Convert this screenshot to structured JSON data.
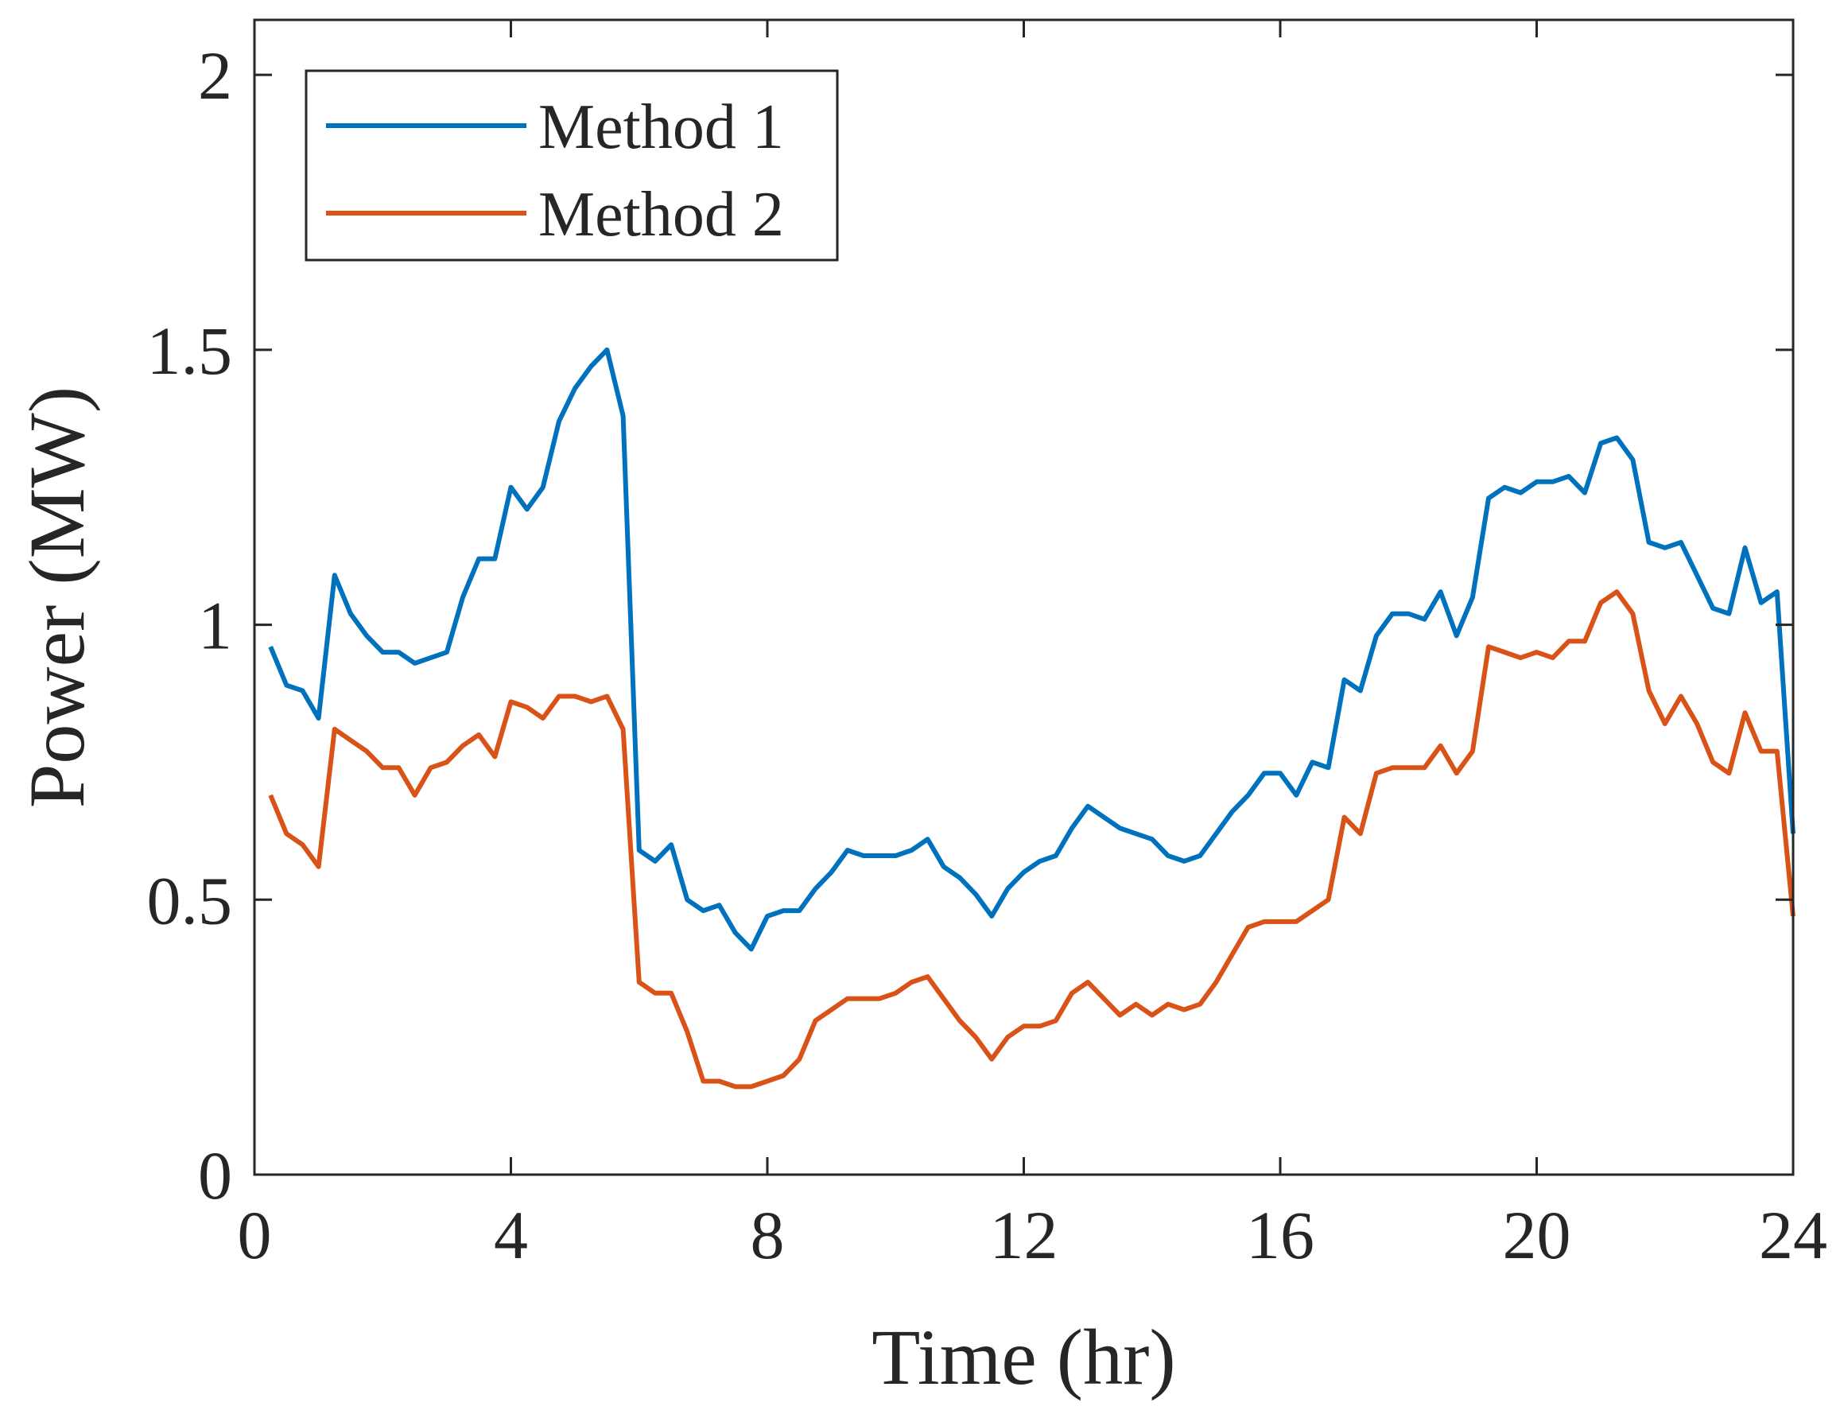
{
  "chart_data": {
    "type": "line",
    "title": "",
    "xlabel": "Time (hr)",
    "ylabel": "Power (MW)",
    "xlim": [
      0,
      24
    ],
    "ylim": [
      0,
      2.1
    ],
    "xticks": [
      0,
      4,
      8,
      12,
      16,
      20,
      24
    ],
    "xtick_labels": [
      "0",
      "4",
      "8",
      "12",
      "16",
      "20",
      "24"
    ],
    "yticks": [
      0,
      0.5,
      1,
      1.5,
      2
    ],
    "ytick_labels": [
      "0",
      "0.5",
      "1",
      "1.5",
      "2"
    ],
    "grid": false,
    "legend_position": "top-left",
    "x": [
      0.25,
      0.5,
      0.75,
      1.0,
      1.25,
      1.5,
      1.75,
      2.0,
      2.25,
      2.5,
      2.75,
      3.0,
      3.25,
      3.5,
      3.75,
      4.0,
      4.25,
      4.5,
      4.75,
      5.0,
      5.25,
      5.5,
      5.75,
      6.0,
      6.25,
      6.5,
      6.75,
      7.0,
      7.25,
      7.5,
      7.75,
      8.0,
      8.25,
      8.5,
      8.75,
      9.0,
      9.25,
      9.5,
      9.75,
      10.0,
      10.25,
      10.5,
      10.75,
      11.0,
      11.25,
      11.5,
      11.75,
      12.0,
      12.25,
      12.5,
      12.75,
      13.0,
      13.25,
      13.5,
      13.75,
      14.0,
      14.25,
      14.5,
      14.75,
      15.0,
      15.25,
      15.5,
      15.75,
      16.0,
      16.25,
      16.5,
      16.75,
      17.0,
      17.25,
      17.5,
      17.75,
      18.0,
      18.25,
      18.5,
      18.75,
      19.0,
      19.25,
      19.5,
      19.75,
      20.0,
      20.25,
      20.5,
      20.75,
      21.0,
      21.25,
      21.5,
      21.75,
      22.0,
      22.25,
      22.5,
      22.75,
      23.0,
      23.25,
      23.5,
      23.75,
      24.0
    ],
    "series": [
      {
        "name": "Method 1",
        "color": "#0072bd",
        "values": [
          0.96,
          0.89,
          0.88,
          0.83,
          1.09,
          1.02,
          0.98,
          0.95,
          0.95,
          0.93,
          0.94,
          0.95,
          1.05,
          1.12,
          1.12,
          1.25,
          1.21,
          1.25,
          1.37,
          1.43,
          1.47,
          1.5,
          1.38,
          0.59,
          0.57,
          0.6,
          0.5,
          0.48,
          0.49,
          0.44,
          0.41,
          0.47,
          0.48,
          0.48,
          0.52,
          0.55,
          0.59,
          0.58,
          0.58,
          0.58,
          0.59,
          0.61,
          0.56,
          0.54,
          0.51,
          0.47,
          0.52,
          0.55,
          0.57,
          0.58,
          0.63,
          0.67,
          0.65,
          0.63,
          0.62,
          0.61,
          0.58,
          0.57,
          0.58,
          0.62,
          0.66,
          0.69,
          0.73,
          0.73,
          0.69,
          0.75,
          0.74,
          0.9,
          0.88,
          0.98,
          1.02,
          1.02,
          1.01,
          1.06,
          0.98,
          1.05,
          1.23,
          1.25,
          1.24,
          1.26,
          1.26,
          1.27,
          1.24,
          1.33,
          1.34,
          1.3,
          1.15,
          1.14,
          1.15,
          1.09,
          1.03,
          1.02,
          1.14,
          1.04,
          1.06,
          0.62
        ]
      },
      {
        "name": "Method 2",
        "color": "#d95319",
        "values": [
          0.69,
          0.62,
          0.6,
          0.56,
          0.81,
          0.79,
          0.77,
          0.74,
          0.74,
          0.69,
          0.74,
          0.75,
          0.78,
          0.8,
          0.76,
          0.86,
          0.85,
          0.83,
          0.87,
          0.87,
          0.86,
          0.87,
          0.81,
          0.35,
          0.33,
          0.33,
          0.26,
          0.17,
          0.17,
          0.16,
          0.16,
          0.17,
          0.18,
          0.21,
          0.28,
          0.3,
          0.32,
          0.32,
          0.32,
          0.33,
          0.35,
          0.36,
          0.32,
          0.28,
          0.25,
          0.21,
          0.25,
          0.27,
          0.27,
          0.28,
          0.33,
          0.35,
          0.32,
          0.29,
          0.31,
          0.29,
          0.31,
          0.3,
          0.31,
          0.35,
          0.4,
          0.45,
          0.46,
          0.46,
          0.46,
          0.48,
          0.5,
          0.65,
          0.62,
          0.73,
          0.74,
          0.74,
          0.74,
          0.78,
          0.73,
          0.77,
          0.96,
          0.95,
          0.94,
          0.95,
          0.94,
          0.97,
          0.97,
          1.04,
          1.06,
          1.02,
          0.88,
          0.82,
          0.87,
          0.82,
          0.75,
          0.73,
          0.84,
          0.77,
          0.77,
          0.47
        ]
      }
    ]
  }
}
